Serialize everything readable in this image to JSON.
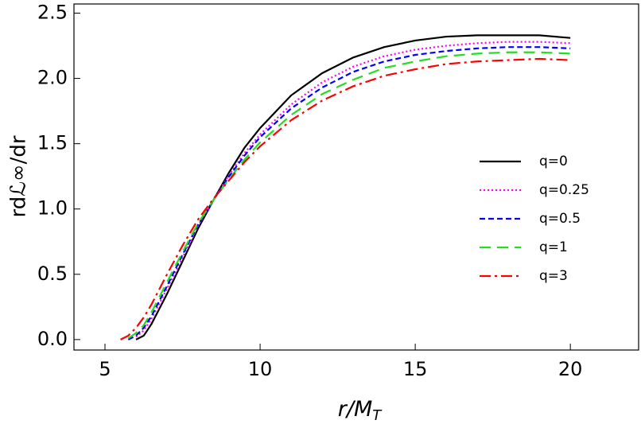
{
  "chart_data": {
    "type": "line",
    "y_label": "rdℒ∞/dr",
    "x_label": "r/M",
    "x_label_sub": "T",
    "x": [
      5.5,
      5.75,
      6,
      6.25,
      6.5,
      7,
      7.5,
      8,
      8.5,
      9,
      9.5,
      10,
      11,
      12,
      13,
      14,
      15,
      16,
      17,
      18,
      19,
      20
    ],
    "series": [
      {
        "name": "q=0",
        "color": "#000000",
        "dash": "solid",
        "values": [
          null,
          null,
          0,
          0.03,
          0.12,
          0.35,
          0.6,
          0.85,
          1.07,
          1.28,
          1.47,
          1.62,
          1.87,
          2.04,
          2.16,
          2.24,
          2.29,
          2.32,
          2.33,
          2.33,
          2.33,
          2.31
        ]
      },
      {
        "name": "q=0.25",
        "color": "#ff00ff",
        "dash": "dotted",
        "values": [
          null,
          null,
          0.02,
          0.07,
          0.16,
          0.39,
          0.63,
          0.87,
          1.07,
          1.26,
          1.43,
          1.57,
          1.8,
          1.97,
          2.09,
          2.17,
          2.22,
          2.25,
          2.27,
          2.28,
          2.28,
          2.27
        ]
      },
      {
        "name": "q=0.5",
        "color": "#0000ff",
        "dash": "dashed",
        "values": [
          null,
          0,
          0.03,
          0.09,
          0.18,
          0.41,
          0.65,
          0.88,
          1.07,
          1.25,
          1.41,
          1.55,
          1.77,
          1.93,
          2.05,
          2.13,
          2.18,
          2.21,
          2.23,
          2.24,
          2.24,
          2.23
        ]
      },
      {
        "name": "q=1",
        "color": "#22dd22",
        "dash": "longdash",
        "values": [
          null,
          0.01,
          0.05,
          0.11,
          0.21,
          0.44,
          0.67,
          0.89,
          1.07,
          1.23,
          1.38,
          1.51,
          1.72,
          1.88,
          1.99,
          2.08,
          2.13,
          2.17,
          2.19,
          2.2,
          2.2,
          2.19
        ]
      },
      {
        "name": "q=3",
        "color": "#ff0000",
        "dash": "dashdot",
        "values": [
          0,
          0.03,
          0.09,
          0.17,
          0.27,
          0.5,
          0.72,
          0.92,
          1.08,
          1.22,
          1.36,
          1.48,
          1.68,
          1.83,
          1.94,
          2.02,
          2.07,
          2.11,
          2.13,
          2.14,
          2.15,
          2.14
        ]
      }
    ],
    "xlim": [
      4.0,
      22.2
    ],
    "ylim": [
      -0.08,
      2.57
    ],
    "xticks": [
      5,
      10,
      15,
      20
    ],
    "yticks": [
      {
        "value": 0,
        "label": "0.0"
      },
      0.5,
      {
        "value": 1,
        "label": "1.0"
      },
      1.5,
      {
        "value": 2,
        "label": "2.0"
      },
      2.5
    ],
    "legend": "right"
  }
}
